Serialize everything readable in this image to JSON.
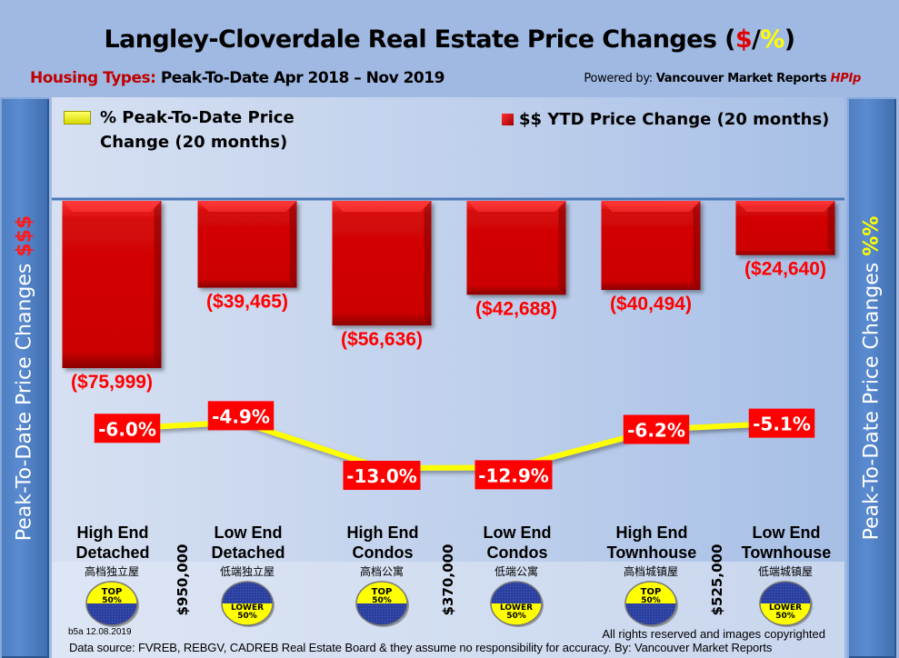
{
  "header": {
    "title_main": "Langley-Cloverdale Real Estate Price Changes (",
    "title_dollar": "$",
    "title_slash": "/",
    "title_percent": "%",
    "title_close": ")",
    "subtitle_label": "Housing Types:",
    "subtitle_text": " Peak-To-Date Apr 2018 – Nov 2019",
    "powered_label": "Powered by: ",
    "powered_brand": "Vancouver Market Reports ",
    "powered_hpi": "HPIp"
  },
  "side_panels": {
    "left_text": "Peak-To-Date Price Changes ",
    "left_accent": "$$$",
    "right_text": "Peak-To-Date  Price  Changes  ",
    "right_accent": "%%"
  },
  "colors": {
    "bar": "#d40000",
    "line": "#ffff00",
    "label_red": "#ff0000",
    "badge_yellow": "#ffff00",
    "badge_blue": "#2a3f9e"
  },
  "chart_data": {
    "type": "bar",
    "title": "Langley-Cloverdale Real Estate Price Changes ($/%)",
    "xlabel": "",
    "ylabel": "Peak-To-Date Price Changes $$$",
    "y2label": "Peak-To-Date Price Changes %%",
    "categories": [
      "High End Detached",
      "Low End Detached",
      "High End Condos",
      "Low End Condos",
      "High End Townhouse",
      "Low End Townhouse"
    ],
    "category_lines": [
      [
        "High End",
        "Detached"
      ],
      [
        "Low End",
        "Detached"
      ],
      [
        "High End",
        "Condos"
      ],
      [
        "Low End",
        "Condos"
      ],
      [
        "High End",
        "Townhouse"
      ],
      [
        "Low End",
        "Townhouse"
      ]
    ],
    "category_chinese": [
      "高档独立屋",
      "低端独立屋",
      "高档公寓",
      "低端公寓",
      "高档城镇屋",
      "低端城镇屋"
    ],
    "badges": [
      {
        "type": "top",
        "line1": "TOP",
        "line2": "50%"
      },
      {
        "type": "lower",
        "line1": "LOWER",
        "line2": "50%"
      },
      {
        "type": "top",
        "line1": "TOP",
        "line2": "50%"
      },
      {
        "type": "lower",
        "line1": "LOWER",
        "line2": "50%"
      },
      {
        "type": "top",
        "line1": "TOP",
        "line2": "50%"
      },
      {
        "type": "lower",
        "line1": "LOWER",
        "line2": "50%"
      }
    ],
    "price_thresholds": [
      "$950,000",
      "$370,000",
      "$525,000"
    ],
    "series": [
      {
        "name": "$$ YTD Price Change (20 months)",
        "type": "bar",
        "values": [
          -75999,
          -39465,
          -56636,
          -42688,
          -40494,
          -24640
        ],
        "labels": [
          "($75,999)",
          "($39,465)",
          "($56,636)",
          "($42,688)",
          "($40,494)",
          "($24,640)"
        ]
      },
      {
        "name": "% Peak-To-Date Price Change (20 months)",
        "type": "line",
        "values": [
          -6.0,
          -4.9,
          -13.0,
          -12.9,
          -6.2,
          -5.1
        ],
        "labels": [
          "-6.0%",
          "-4.9%",
          "-13.0%",
          "-12.9%",
          "-6.2%",
          "-5.1%"
        ]
      }
    ],
    "ylim": [
      -80000,
      0
    ],
    "legend": {
      "pct_line1": "% Peak-To-Date Price",
      "pct_line2": "Change (20 months)",
      "dollar": "$$ YTD Price Change (20 months)",
      "placement": "top"
    },
    "grid": false
  },
  "footer": {
    "version": "b5a 12.08.2019",
    "rights": "All rights reserved and  images copyrighted",
    "source": "Data source: FVREB, REBGV, CADREB Real Estate Board & they assume no responsibility for accuracy. By: Vancouver Market Reports"
  }
}
